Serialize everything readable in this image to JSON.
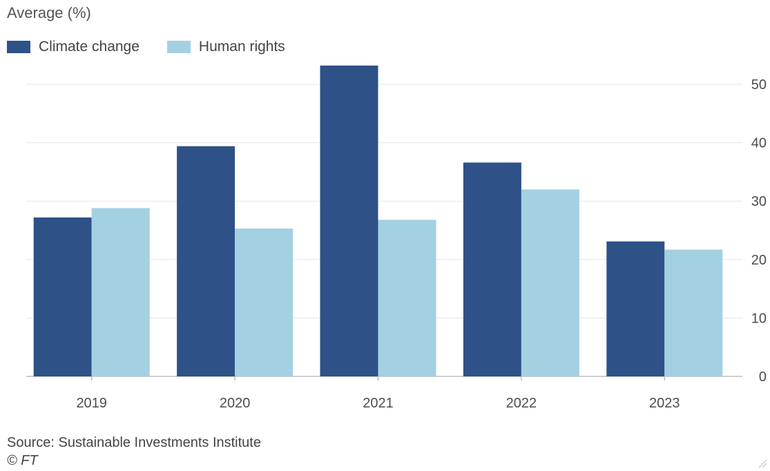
{
  "chart_data": {
    "type": "bar",
    "ylabel": "Average (%)",
    "categories": [
      "2019",
      "2020",
      "2021",
      "2022",
      "2023"
    ],
    "series": [
      {
        "name": "Climate change",
        "values": [
          27.2,
          39.4,
          53.2,
          36.6,
          23.1
        ],
        "color": "#2e5188"
      },
      {
        "name": "Human rights",
        "values": [
          28.8,
          25.3,
          26.8,
          32.0,
          21.7
        ],
        "color": "#a3d1e2"
      }
    ],
    "ylim": [
      0,
      50
    ],
    "yticks": [
      0,
      10,
      20,
      30,
      40,
      50
    ],
    "grid": true,
    "yaxis_position": "right",
    "legend_position": "top-left"
  },
  "footer": {
    "source": "Source: Sustainable Investments Institute",
    "copyright": "© FT"
  },
  "colors": {
    "gridline": "#e6e6e6",
    "axis": "#bdbdbd",
    "text": "#4d4d4d"
  }
}
